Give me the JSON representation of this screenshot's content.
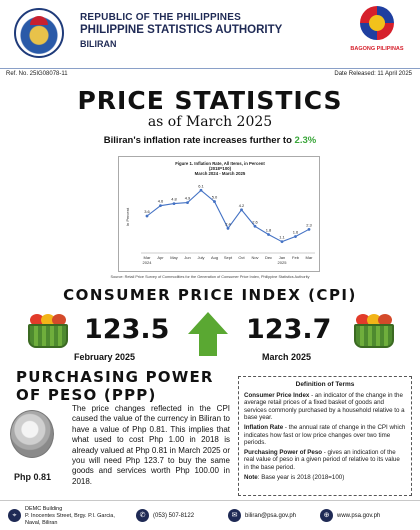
{
  "header": {
    "line1": "REPUBLIC OF THE PHILIPPINES",
    "line2": "PHILIPPINE STATISTICS AUTHORITY",
    "line3": "BILIRAN",
    "brand_badge": "BAGONG PILIPINAS"
  },
  "meta": {
    "ref_no": "Ref. No. 25IG08078-11",
    "date_released": "Date Released: 11 April 2025"
  },
  "title": "PRICE STATISTICS",
  "subtitle": "as of March 2025",
  "tagline": {
    "text": "Biliran's inflation rate increases further to",
    "highlight": "2.3%"
  },
  "chart_data": {
    "type": "line",
    "title": "Figure 1. Inflation Rate, All Items, in Percent",
    "subtitle_1": "(2018=100)",
    "subtitle_2": "March 2024 - March 2025",
    "ylabel": "In Percent",
    "categories": [
      "Mar 2024",
      "Apr",
      "May",
      "Jun",
      "July",
      "Aug",
      "Sept",
      "Oct",
      "Nov",
      "Dec",
      "Jan 2025",
      "Feb",
      "Mar"
    ],
    "tick_labels": [
      [
        "Mar",
        "2024"
      ],
      [
        "Apr"
      ],
      [
        "May"
      ],
      [
        "Jun"
      ],
      [
        "July"
      ],
      [
        "Aug"
      ],
      [
        "Sept"
      ],
      [
        "Oct"
      ],
      [
        "Nov"
      ],
      [
        "Dec"
      ],
      [
        "Jan",
        "2025"
      ],
      [
        "Feb"
      ],
      [
        "Mar"
      ]
    ],
    "values": [
      3.6,
      4.6,
      4.8,
      4.9,
      6.1,
      5.0,
      2.4,
      4.2,
      2.6,
      1.8,
      1.1,
      1.6,
      2.3
    ],
    "ylim": [
      0,
      7
    ],
    "line_color": "#4472c4",
    "source": "Source: Retail Price Survey of Commodities for the Generation of Consumer Price Index, Philippine Statistics Authority"
  },
  "cpi": {
    "heading": "CONSUMER PRICE INDEX (CPI)",
    "feb_value": "123.5",
    "feb_label": "February 2025",
    "mar_value": "123.7",
    "mar_label": "March 2025",
    "arrow_color": "#5aa832"
  },
  "ppp": {
    "heading": "PURCHASING POWER OF PESO (PPP)",
    "coin_label": "Php 0.81",
    "text": "The price changes reflected in the CPI caused the value of the currency in Biliran to have a value of Php 0.81. This implies that what used to cost Php 1.00 in 2018 is already valued at Php 0.81 in March 2025 or you will need Php 123.7 to buy the same goods and services worth Php 100.00 in 2018."
  },
  "definitions": {
    "title": "Definition of Terms",
    "cpi_term": "Consumer Price Index",
    "cpi_def": " - an indicator of the change in the average retail prices of a fixed basket of goods and services commonly purchased by a household relative to a base year.",
    "inf_term": "Inflation Rate",
    "inf_def": " - the annual rate of change in the CPI which indicates how fast or low price changes over two time periods.",
    "ppp_term": "Purchasing Power of Peso",
    "ppp_def": " - gives an indication of the real value of peso in a given period of relative to its value in the base period.",
    "note_term": "Note",
    "note_def": ": Base year is 2018 (2018=100)"
  },
  "footer": {
    "address_1": "DEMC Building",
    "address_2": "P. Inocentes Street, Brgy. P.I. Garcia,",
    "address_3": "Naval, Biliran",
    "phone": "(053) 507-8122",
    "email": "biliran@psa.gov.ph",
    "website": "www.psa.gov.ph"
  }
}
